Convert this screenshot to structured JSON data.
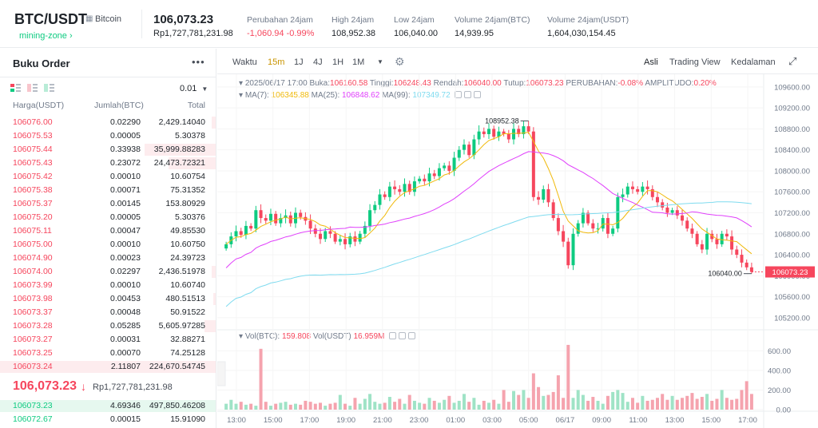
{
  "ticker": {
    "symbol": "BTC/USDT",
    "name": "Bitcoin",
    "tag": "mining-zone",
    "price": "106,073.23",
    "price_idr": "Rp1,727,781,231.98",
    "stats": [
      {
        "label": "Perubahan 24jam",
        "value": "-1,060.94 -0.99%",
        "negative": true
      },
      {
        "label": "High 24jam",
        "value": "108,952.38",
        "negative": false
      },
      {
        "label": "Low 24jam",
        "value": "106,040.00",
        "negative": false
      },
      {
        "label": "Volume 24jam(BTC)",
        "value": "14,939.95",
        "negative": false
      },
      {
        "label": "Volume 24jam(USDT)",
        "value": "1,604,030,154.45",
        "negative": false
      }
    ]
  },
  "orderbook": {
    "title": "Buku Order",
    "tick": "0.01",
    "headers": {
      "price": "Harga(USDT)",
      "amount": "Jumlah(BTC)",
      "total": "Total"
    },
    "asks": [
      {
        "price": "106076.00",
        "amount": "0.02290",
        "total": "2,429.14040",
        "depth": 0.02
      },
      {
        "price": "106075.53",
        "amount": "0.00005",
        "total": "5.30378",
        "depth": 0.0
      },
      {
        "price": "106075.44",
        "amount": "0.33938",
        "total": "35,999.88283",
        "depth": 0.33
      },
      {
        "price": "106075.43",
        "amount": "0.23072",
        "total": "24,473.72321",
        "depth": 0.22
      },
      {
        "price": "106075.42",
        "amount": "0.00010",
        "total": "10.60754",
        "depth": 0.0
      },
      {
        "price": "106075.38",
        "amount": "0.00071",
        "total": "75.31352",
        "depth": 0.0
      },
      {
        "price": "106075.37",
        "amount": "0.00145",
        "total": "153.80929",
        "depth": 0.0
      },
      {
        "price": "106075.20",
        "amount": "0.00005",
        "total": "5.30376",
        "depth": 0.0
      },
      {
        "price": "106075.11",
        "amount": "0.00047",
        "total": "49.85530",
        "depth": 0.0
      },
      {
        "price": "106075.00",
        "amount": "0.00010",
        "total": "10.60750",
        "depth": 0.0
      },
      {
        "price": "106074.90",
        "amount": "0.00023",
        "total": "24.39723",
        "depth": 0.0
      },
      {
        "price": "106074.00",
        "amount": "0.02297",
        "total": "2,436.51978",
        "depth": 0.02
      },
      {
        "price": "106073.99",
        "amount": "0.00010",
        "total": "10.60740",
        "depth": 0.0
      },
      {
        "price": "106073.98",
        "amount": "0.00453",
        "total": "480.51513",
        "depth": 0.01
      },
      {
        "price": "106073.37",
        "amount": "0.00048",
        "total": "50.91522",
        "depth": 0.0
      },
      {
        "price": "106073.28",
        "amount": "0.05285",
        "total": "5,605.97285",
        "depth": 0.05
      },
      {
        "price": "106073.27",
        "amount": "0.00031",
        "total": "32.88271",
        "depth": 0.0
      },
      {
        "price": "106073.25",
        "amount": "0.00070",
        "total": "74.25128",
        "depth": 0.0
      },
      {
        "price": "106073.24",
        "amount": "2.11807",
        "total": "224,670.54745",
        "depth": 1.0
      }
    ],
    "last_price": "106,073.23",
    "last_price_idr": "Rp1,727,781,231.98",
    "bids": [
      {
        "price": "106073.23",
        "amount": "4.69346",
        "total": "497,850.46208",
        "depth": 1.0
      },
      {
        "price": "106072.67",
        "amount": "0.00015",
        "total": "15.91090",
        "depth": 0.0
      }
    ]
  },
  "toolbar": {
    "time_label": "Waktu",
    "intervals": [
      "15m",
      "1J",
      "4J",
      "1H",
      "1M"
    ],
    "active_interval": "15m",
    "views": [
      "Asli",
      "Trading View",
      "Kedalaman"
    ],
    "active_view": "Asli"
  },
  "chart_legend": {
    "date": "2025/06/17 17:00",
    "open_label": "Buka:",
    "open": "106160.58",
    "high_label": "Tinggi:",
    "high": "106248.43",
    "low_label": "Rendah:",
    "low": "106040.00",
    "close_label": "Tutup:",
    "close": "106073.23",
    "change_label": "PERUBAHAN:",
    "change": "-0.08%",
    "amp_label": "AMPLITUDO:",
    "amp": "0.20%",
    "ma7_label": "MA(7):",
    "ma7": "106345.88",
    "ma25_label": "MA(25):",
    "ma25": "106848.62",
    "ma99_label": "MA(99):",
    "ma99": "107349.72",
    "vol_btc_label": "Vol(BTC):",
    "vol_btc": "159.808",
    "vol_usdt_label": "Vol(USDT)",
    "vol_usdt": "16.959M"
  },
  "colors": {
    "up": "#0ecb81",
    "down": "#f6465d",
    "ma7": "#f0b90b",
    "ma25": "#e040fb",
    "ma99": "#7fdbef"
  },
  "chart_data": {
    "type": "candlestick",
    "price_axis_ticks": [
      "109600.00",
      "109200.00",
      "108800.00",
      "108400.00",
      "108000.00",
      "107600.00",
      "107200.00",
      "106800.00",
      "106400.00",
      "106000.00",
      "105600.00",
      "105200.00"
    ],
    "price_range": [
      105000,
      109750
    ],
    "time_axis_ticks": [
      "13:00",
      "15:00",
      "17:00",
      "19:00",
      "21:00",
      "23:00",
      "01:00",
      "03:00",
      "05:00",
      "06/17",
      "09:00",
      "11:00",
      "13:00",
      "15:00",
      "17:00"
    ],
    "volume_axis_ticks": [
      "600.00",
      "400.00",
      "200.00",
      "0.00"
    ],
    "volume_range": [
      0,
      700
    ],
    "high_annotation": "108952.38",
    "low_annotation": "106040.00",
    "current_price_label": "106073.23",
    "closes": [
      106600,
      106750,
      106850,
      106780,
      106950,
      106900,
      107250,
      107100,
      107050,
      107180,
      107000,
      107100,
      107150,
      107000,
      107200,
      107120,
      107050,
      106900,
      106800,
      106700,
      106850,
      106800,
      106650,
      106700,
      106600,
      106750,
      106650,
      106800,
      106950,
      107250,
      107350,
      107550,
      107500,
      107700,
      107650,
      107600,
      107750,
      107600,
      107800,
      107850,
      107800,
      107950,
      107900,
      108050,
      108100,
      108000,
      108250,
      108400,
      108500,
      108300,
      108600,
      108750,
      108700,
      108800,
      108650,
      108750,
      108700,
      108600,
      108800,
      108700,
      108850,
      108750,
      107500,
      107450,
      107650,
      107400,
      107100,
      106850,
      106650,
      106200,
      106800,
      107000,
      107200,
      107000,
      106900,
      106900,
      107100,
      106800,
      106900,
      107500,
      107550,
      107700,
      107650,
      107600,
      107700,
      107650,
      107500,
      107400,
      107300,
      107200,
      107250,
      107150,
      107050,
      106900,
      106800,
      106600,
      106500,
      106800,
      106700,
      106600,
      106800,
      106750,
      106500,
      106400,
      106250,
      106160,
      106073
    ],
    "volumes": [
      60,
      100,
      60,
      80,
      50,
      60,
      40,
      620,
      80,
      40,
      60,
      70,
      80,
      50,
      60,
      50,
      90,
      80,
      60,
      70,
      40,
      60,
      70,
      150,
      60,
      40,
      120,
      60,
      110,
      160,
      80,
      60,
      70,
      130,
      80,
      110,
      60,
      150,
      90,
      70,
      60,
      120,
      90,
      70,
      100,
      140,
      70,
      90,
      160,
      80,
      120,
      50,
      90,
      70,
      100,
      60,
      200,
      80,
      190,
      150,
      200,
      120,
      370,
      230,
      140,
      150,
      180,
      350,
      120,
      660,
      120,
      200,
      150,
      90,
      130,
      90,
      60,
      140,
      180,
      200,
      170,
      80,
      120,
      70,
      140,
      90,
      100,
      120,
      160,
      100,
      140,
      100,
      120,
      140,
      170,
      110,
      130,
      160,
      90,
      110,
      200,
      120,
      100,
      110,
      200,
      290,
      160
    ]
  }
}
